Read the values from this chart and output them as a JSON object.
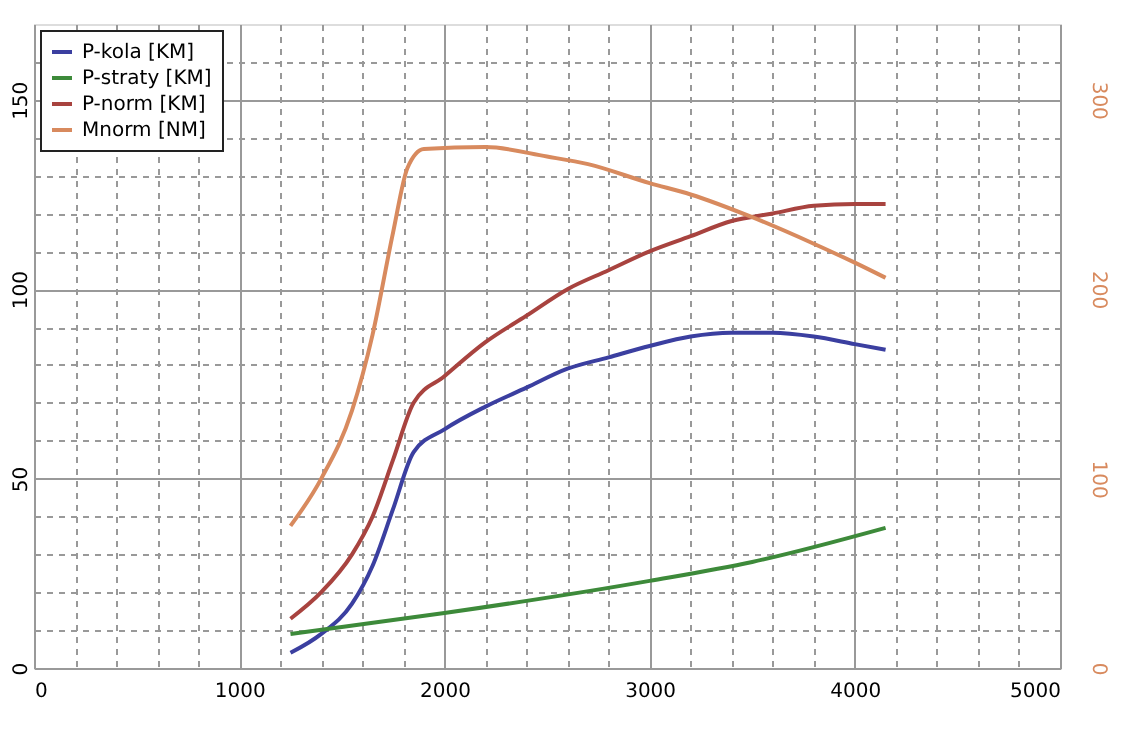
{
  "chart_data": {
    "type": "line",
    "xlim": [
      0,
      5000
    ],
    "ylim": [
      0,
      170
    ],
    "y2lim": [
      0,
      340
    ],
    "xticks": [
      0,
      {
        "value": 200,
        "label": null
      },
      {
        "value": 400,
        "label": null
      },
      {
        "value": 600,
        "label": null
      },
      {
        "value": 800,
        "label": null
      },
      1000,
      {
        "value": 1200,
        "label": null
      },
      {
        "value": 1400,
        "label": null
      },
      {
        "value": 1600,
        "label": null
      },
      {
        "value": 1800,
        "label": null
      },
      2000,
      {
        "value": 2200,
        "label": null
      },
      {
        "value": 2400,
        "label": null
      },
      {
        "value": 2600,
        "label": null
      },
      {
        "value": 2800,
        "label": null
      },
      3000,
      {
        "value": 3200,
        "label": null
      },
      {
        "value": 3400,
        "label": null
      },
      {
        "value": 3600,
        "label": null
      },
      {
        "value": 3800,
        "label": null
      },
      4000,
      {
        "value": 4200,
        "label": null
      },
      {
        "value": 4400,
        "label": null
      },
      {
        "value": 4600,
        "label": null
      },
      {
        "value": 4800,
        "label": null
      },
      5000
    ],
    "yticks": [
      0,
      {
        "value": 10,
        "label": null
      },
      {
        "value": 20,
        "label": null
      },
      {
        "value": 30,
        "label": null
      },
      {
        "value": 40,
        "label": null
      },
      50,
      {
        "value": 60,
        "label": null
      },
      {
        "value": 70,
        "label": null
      },
      {
        "value": 80,
        "label": null
      },
      {
        "value": 90,
        "label": null
      },
      100,
      {
        "value": 110,
        "label": null
      },
      {
        "value": 120,
        "label": null
      },
      {
        "value": 130,
        "label": null
      },
      {
        "value": 140,
        "label": null
      },
      150,
      {
        "value": 160,
        "label": null
      }
    ],
    "y2ticks": [
      0,
      100,
      200,
      300
    ],
    "grid": true,
    "legend": "top left",
    "marker": "none",
    "line_style": "solid",
    "series": [
      {
        "name": "P-kola [KM]",
        "color": "#3b3fa0",
        "x": [
          1250,
          1400,
          1550,
          1650,
          1750,
          1850,
          2000,
          2200,
          2400,
          2600,
          2800,
          3000,
          3200,
          3400,
          3600,
          3800,
          4000,
          4150
        ],
        "values": [
          4,
          9,
          17,
          27,
          42,
          57,
          63,
          69,
          74,
          79,
          82,
          85,
          87.5,
          88.5,
          88.5,
          87.5,
          85.5,
          84
        ]
      },
      {
        "name": "P-straty [KM]",
        "color": "#3d8a3a",
        "x": [
          1250,
          2000,
          3000,
          3500,
          4150
        ],
        "values": [
          9,
          14.5,
          23,
          28,
          37
        ]
      },
      {
        "name": "P-norm [KM]",
        "color": "#a8433f",
        "x": [
          1250,
          1400,
          1550,
          1650,
          1750,
          1850,
          2000,
          2200,
          2400,
          2600,
          2800,
          3000,
          3200,
          3400,
          3600,
          3800,
          4000,
          4150
        ],
        "values": [
          13,
          20,
          30,
          40,
          55,
          70,
          77,
          86,
          93,
          100,
          105,
          110,
          114,
          118,
          120,
          122,
          122.5,
          122.5
        ]
      },
      {
        "name": "Mnorm [NM]",
        "color": "#d88a5e",
        "axis": "y2",
        "x": [
          1250,
          1400,
          1550,
          1650,
          1750,
          1820,
          1900,
          2200,
          2500,
          2700,
          3000,
          3200,
          3500,
          3800,
          4000,
          4150
        ],
        "values": [
          75,
          100,
          136,
          176,
          230,
          264,
          274,
          275,
          270,
          266,
          256,
          250,
          238,
          224,
          214,
          206
        ]
      }
    ]
  }
}
